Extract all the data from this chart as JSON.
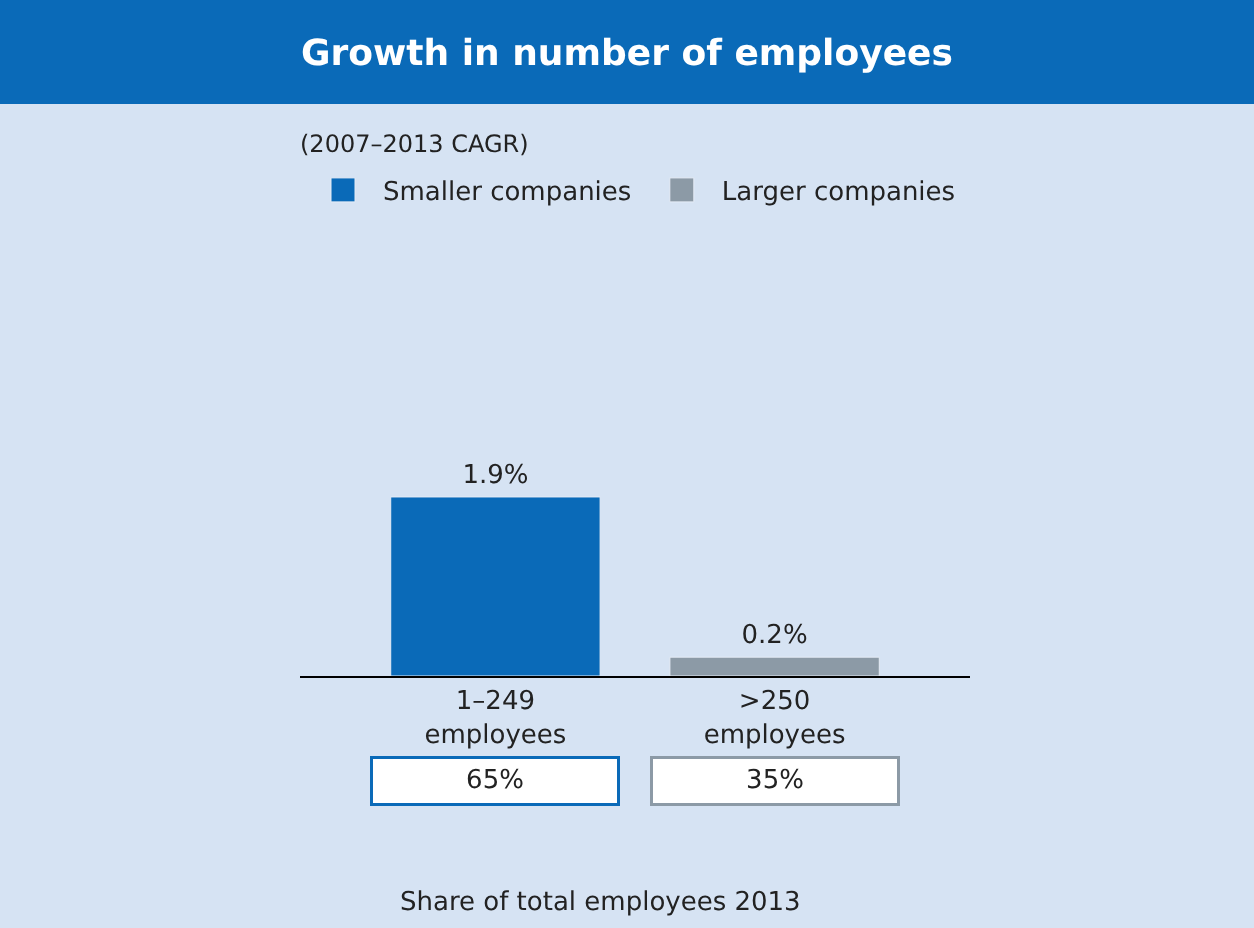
{
  "chart_data": {
    "type": "bar",
    "title": "Growth in number of employees",
    "subtitle": "(2007–2013 CAGR)",
    "categories": [
      "1–249 employees",
      ">250 employees"
    ],
    "series": [
      {
        "name": "Smaller companies",
        "color": "#0a6ab8",
        "values": [
          1.9,
          null
        ],
        "value_labels": [
          "1.9%",
          null
        ]
      },
      {
        "name": "Larger companies",
        "color": "#8c9aa6",
        "values": [
          null,
          0.2
        ],
        "value_labels": [
          null,
          "0.2%"
        ]
      }
    ],
    "annotations": [
      "65%",
      "35%",
      "Share of total employees 2013"
    ],
    "legend": "top",
    "grid": false
  }
}
